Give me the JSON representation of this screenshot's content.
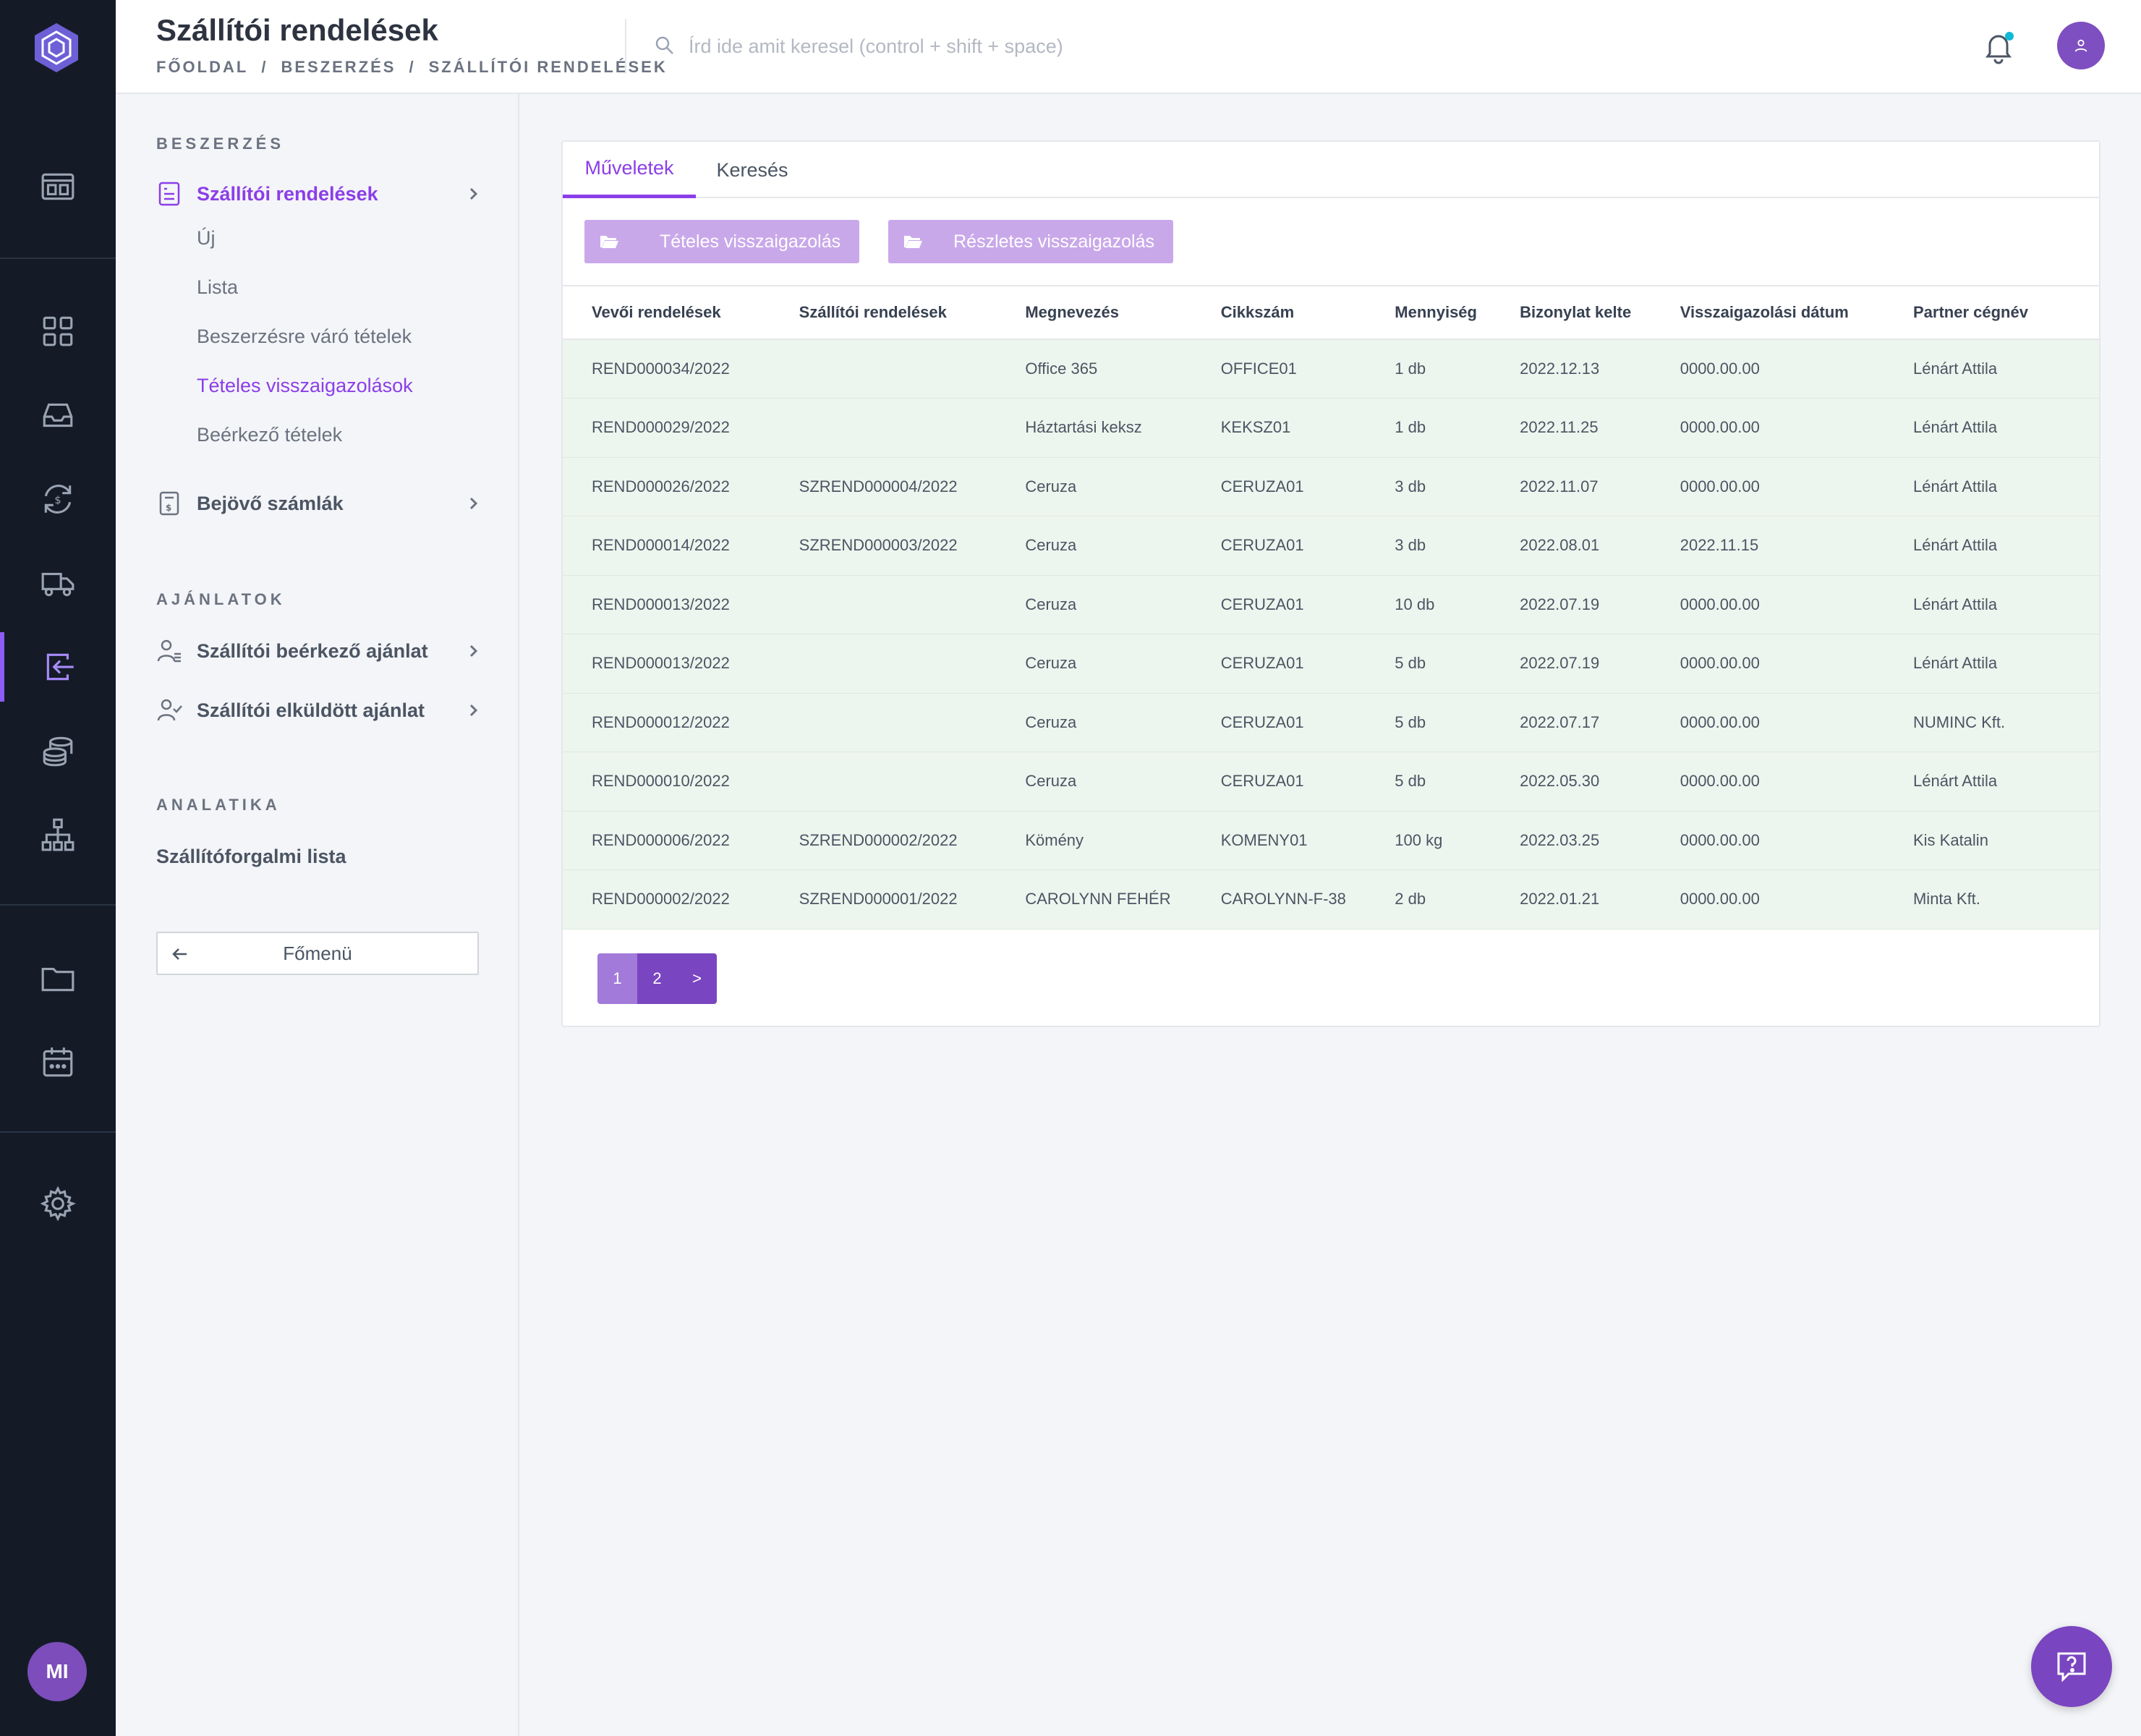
{
  "header": {
    "title": "Szállítói rendelések",
    "breadcrumb": [
      "FŐOLDAL",
      "/",
      "BESZERZÉS",
      "/",
      "SZÁLLÍTÓI RENDELÉSEK"
    ],
    "search_placeholder": "Írd ide amit keresel (control + shift + space)"
  },
  "rail": {
    "avatar_initials": "MI",
    "icons": [
      "dashboard-icon",
      "grid-icon",
      "inbox-icon",
      "currency-exchange-icon",
      "truck-icon",
      "procurement-icon",
      "coins-icon",
      "org-chart-icon",
      "folder-icon",
      "calendar-icon",
      "settings-icon"
    ],
    "active": "procurement-icon"
  },
  "sidebar": {
    "section1": "BESZERZÉS",
    "orders": {
      "label": "Szállítói rendelések"
    },
    "sub_items": [
      {
        "label": "Új"
      },
      {
        "label": "Lista"
      },
      {
        "label": "Beszerzésre váró tételek"
      },
      {
        "label": "Tételes visszaigazolások"
      },
      {
        "label": "Beérkező tételek"
      }
    ],
    "invoices": {
      "label": "Bejövő számlák"
    },
    "section2": "AJÁNLATOK",
    "offers_in": {
      "label": "Szállítói beérkező ajánlat"
    },
    "offers_out": {
      "label": "Szállítói elküldött ajánlat"
    },
    "section3": "ANALATIKA",
    "turnover": {
      "label": "Szállítóforgalmi lista"
    },
    "back_label": "Főmenü"
  },
  "tabs": [
    {
      "label": "Műveletek"
    },
    {
      "label": "Keresés"
    }
  ],
  "actions": [
    {
      "label": "Tételes visszaigazolás"
    },
    {
      "label": "Részletes visszaigazolás"
    }
  ],
  "table": {
    "columns": [
      "Vevői rendelések",
      "Szállítói rendelések",
      "Megnevezés",
      "Cikkszám",
      "Mennyiség",
      "Bizonylat kelte",
      "Visszaigazolási dátum",
      "Partner cégnév"
    ],
    "rows": [
      [
        "REND000034/2022",
        "",
        "Office 365",
        "OFFICE01",
        "1 db",
        "2022.12.13",
        "0000.00.00",
        "Lénárt Attila"
      ],
      [
        "REND000029/2022",
        "",
        "Háztartási keksz",
        "KEKSZ01",
        "1 db",
        "2022.11.25",
        "0000.00.00",
        "Lénárt Attila"
      ],
      [
        "REND000026/2022",
        "SZREND000004/2022",
        "Ceruza",
        "CERUZA01",
        "3 db",
        "2022.11.07",
        "0000.00.00",
        "Lénárt Attila"
      ],
      [
        "REND000014/2022",
        "SZREND000003/2022",
        "Ceruza",
        "CERUZA01",
        "3 db",
        "2022.08.01",
        "2022.11.15",
        "Lénárt Attila"
      ],
      [
        "REND000013/2022",
        "",
        "Ceruza",
        "CERUZA01",
        "10 db",
        "2022.07.19",
        "0000.00.00",
        "Lénárt Attila"
      ],
      [
        "REND000013/2022",
        "",
        "Ceruza",
        "CERUZA01",
        "5 db",
        "2022.07.19",
        "0000.00.00",
        "Lénárt Attila"
      ],
      [
        "REND000012/2022",
        "",
        "Ceruza",
        "CERUZA01",
        "5 db",
        "2022.07.17",
        "0000.00.00",
        "NUMINC Kft."
      ],
      [
        "REND000010/2022",
        "",
        "Ceruza",
        "CERUZA01",
        "5 db",
        "2022.05.30",
        "0000.00.00",
        "Lénárt Attila"
      ],
      [
        "REND000006/2022",
        "SZREND000002/2022",
        "Kömény",
        "KOMENY01",
        "100 kg",
        "2022.03.25",
        "0000.00.00",
        "Kis Katalin"
      ],
      [
        "REND000002/2022",
        "SZREND000001/2022",
        "CAROLYNN FEHÉR",
        "CAROLYNN-F-38",
        "2 db",
        "2022.01.21",
        "0000.00.00",
        "Minta Kft."
      ]
    ]
  },
  "pagination": {
    "pages": [
      "1",
      "2",
      ">"
    ],
    "current": "1"
  },
  "colors": {
    "accent": "#8b3ee8",
    "rail_bg": "#141b27",
    "row_bg": "#edf6ee",
    "button_bg": "#c9a8ea"
  }
}
